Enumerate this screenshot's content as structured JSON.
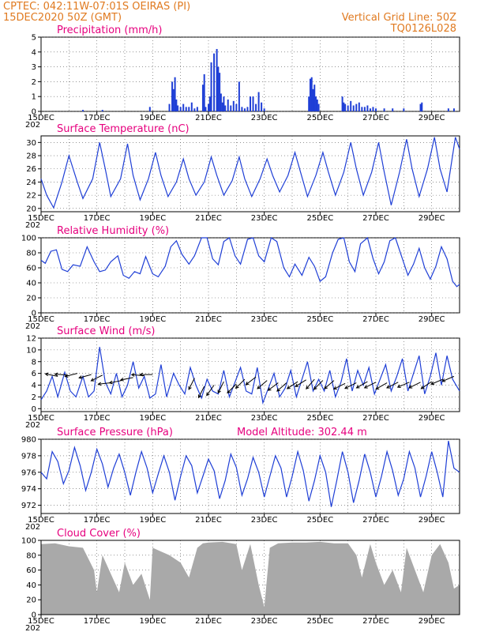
{
  "header": {
    "line1": "CPTEC:   042:11W-07:01S   OEIRAS (PI)",
    "line2": "15DEC2020 50Z (GMT)",
    "grid_note": "Vertical Grid Line: 50Z",
    "model_code": "TQ0126L028"
  },
  "x_axis": {
    "start_day": 15,
    "end_day": 30,
    "tick_labels": [
      "15DEC",
      "17DEC",
      "19DEC",
      "21DEC",
      "23DEC",
      "25DEC",
      "27DEC",
      "29DEC"
    ],
    "tick_days": [
      15,
      17,
      19,
      21,
      23,
      25,
      27,
      29
    ],
    "under_label": "202"
  },
  "chart_data": [
    {
      "id": "precip",
      "type": "bar",
      "title": "Precipitation (mm/h)",
      "ylim": [
        0,
        5
      ],
      "yticks": [
        0,
        1,
        2,
        3,
        4,
        5
      ],
      "color": "#1f3fd6",
      "x": [
        19.6,
        19.7,
        19.75,
        19.8,
        19.85,
        19.9,
        20.0,
        20.1,
        20.2,
        20.3,
        20.4,
        20.5,
        20.6,
        20.8,
        20.85,
        20.9,
        21.0,
        21.05,
        21.1,
        21.2,
        21.3,
        21.35,
        21.4,
        21.45,
        21.5,
        21.55,
        21.6,
        21.7,
        21.8,
        21.9,
        22.0,
        22.1,
        22.2,
        22.3,
        22.4,
        22.5,
        22.6,
        22.7,
        22.8,
        22.9,
        23.0,
        24.6,
        24.65,
        24.7,
        24.75,
        24.8,
        24.85,
        24.9,
        24.95,
        25.8,
        25.85,
        25.9,
        26.0,
        26.1,
        26.2,
        26.3,
        26.4,
        26.5,
        26.6,
        26.7,
        26.8,
        26.9,
        27.0,
        27.3,
        27.6,
        28.0,
        28.6,
        28.65,
        29.6,
        29.8,
        16.5,
        17.2,
        18.9
      ],
      "values": [
        0.5,
        2.0,
        1.5,
        2.3,
        0.8,
        0.4,
        0.3,
        0.5,
        0.3,
        0.3,
        0.6,
        0.2,
        0.3,
        1.8,
        2.5,
        0.3,
        0.5,
        1.0,
        3.3,
        3.9,
        4.2,
        3.0,
        2.6,
        1.2,
        0.6,
        1.0,
        0.4,
        0.8,
        0.4,
        0.7,
        0.5,
        2.0,
        0.3,
        0.2,
        0.3,
        1.0,
        1.0,
        0.5,
        1.3,
        0.6,
        0.2,
        1.0,
        2.2,
        2.3,
        1.5,
        1.8,
        1.0,
        0.8,
        0.5,
        1.0,
        0.6,
        0.5,
        0.4,
        0.7,
        0.4,
        0.5,
        0.6,
        0.3,
        0.3,
        0.4,
        0.2,
        0.3,
        0.2,
        0.2,
        0.2,
        0.2,
        0.5,
        0.6,
        0.2,
        0.2,
        0.1,
        0.1,
        0.3
      ]
    },
    {
      "id": "temp",
      "type": "line",
      "title": "Surface Temperature (nC)",
      "ylim": [
        19.5,
        31
      ],
      "yticks": [
        20,
        22,
        24,
        26,
        28,
        30
      ],
      "color": "#1f3fd6",
      "x": [
        15.0,
        15.2,
        15.45,
        15.75,
        16.0,
        16.3,
        16.5,
        16.85,
        17.1,
        17.3,
        17.5,
        17.85,
        18.1,
        18.3,
        18.55,
        18.85,
        19.1,
        19.3,
        19.55,
        19.85,
        20.1,
        20.3,
        20.55,
        20.85,
        21.1,
        21.3,
        21.55,
        21.85,
        22.1,
        22.3,
        22.55,
        22.85,
        23.1,
        23.3,
        23.55,
        23.85,
        24.1,
        24.3,
        24.55,
        24.85,
        25.1,
        25.3,
        25.55,
        25.85,
        26.1,
        26.3,
        26.55,
        26.85,
        27.1,
        27.3,
        27.55,
        27.85,
        28.1,
        28.3,
        28.55,
        28.85,
        29.1,
        29.3,
        29.55,
        29.85,
        30.0
      ],
      "values": [
        24.5,
        22.0,
        20.1,
        24.0,
        28.0,
        24.0,
        21.5,
        24.5,
        30.0,
        26.0,
        21.8,
        24.5,
        29.8,
        25.0,
        21.3,
        24.5,
        28.5,
        25.0,
        21.8,
        24.0,
        27.5,
        24.5,
        22.0,
        24.0,
        27.8,
        25.0,
        22.0,
        24.2,
        27.8,
        24.5,
        21.8,
        24.5,
        27.5,
        25.0,
        22.5,
        25.0,
        28.5,
        25.5,
        21.8,
        25.0,
        28.5,
        25.5,
        22.0,
        25.5,
        30.0,
        26.0,
        22.0,
        25.5,
        30.0,
        25.5,
        20.5,
        25.5,
        30.5,
        26.0,
        21.8,
        26.0,
        30.8,
        26.0,
        22.5,
        30.8,
        29.0
      ]
    },
    {
      "id": "rh",
      "type": "line",
      "title": "Relative Humidity (%)",
      "ylim": [
        0,
        100
      ],
      "yticks": [
        0,
        20,
        40,
        60,
        80,
        100
      ],
      "color": "#1f3fd6",
      "x": [
        15.0,
        15.15,
        15.35,
        15.55,
        15.75,
        15.95,
        16.15,
        16.4,
        16.65,
        16.9,
        17.1,
        17.3,
        17.5,
        17.75,
        17.95,
        18.15,
        18.35,
        18.55,
        18.75,
        19.0,
        19.2,
        19.45,
        19.65,
        19.85,
        20.05,
        20.3,
        20.5,
        20.75,
        20.95,
        21.15,
        21.35,
        21.55,
        21.75,
        21.95,
        22.15,
        22.4,
        22.6,
        22.8,
        23.0,
        23.25,
        23.45,
        23.7,
        23.9,
        24.1,
        24.35,
        24.6,
        24.8,
        25.0,
        25.2,
        25.45,
        25.65,
        25.85,
        26.05,
        26.25,
        26.45,
        26.7,
        26.9,
        27.1,
        27.3,
        27.5,
        27.7,
        27.95,
        28.15,
        28.35,
        28.55,
        28.75,
        28.95,
        29.15,
        29.35,
        29.55,
        29.75,
        29.9,
        30.0
      ],
      "values": [
        70,
        66,
        82,
        84,
        58,
        55,
        64,
        62,
        88,
        68,
        55,
        57,
        68,
        76,
        50,
        46,
        55,
        52,
        75,
        52,
        48,
        62,
        88,
        96,
        78,
        65,
        76,
        100,
        100,
        72,
        64,
        95,
        100,
        76,
        65,
        98,
        100,
        76,
        68,
        100,
        95,
        60,
        48,
        65,
        50,
        74,
        62,
        42,
        48,
        80,
        98,
        100,
        68,
        55,
        92,
        100,
        72,
        52,
        68,
        96,
        100,
        72,
        50,
        65,
        86,
        60,
        45,
        62,
        88,
        72,
        42,
        35,
        38
      ]
    },
    {
      "id": "wind",
      "type": "line",
      "title": "Surface Wind (m/s)",
      "ylim": [
        -0.5,
        12
      ],
      "yticks": [
        0,
        2,
        4,
        6,
        8,
        10,
        12
      ],
      "color": "#1f3fd6",
      "x": [
        15.0,
        15.2,
        15.4,
        15.6,
        15.85,
        16.05,
        16.25,
        16.5,
        16.7,
        16.9,
        17.1,
        17.3,
        17.5,
        17.7,
        17.9,
        18.1,
        18.3,
        18.5,
        18.7,
        18.9,
        19.1,
        19.3,
        19.5,
        19.75,
        19.95,
        20.15,
        20.35,
        20.55,
        20.75,
        20.95,
        21.15,
        21.35,
        21.55,
        21.75,
        21.95,
        22.15,
        22.35,
        22.55,
        22.75,
        22.95,
        23.15,
        23.35,
        23.55,
        23.75,
        23.95,
        24.15,
        24.35,
        24.55,
        24.75,
        24.95,
        25.15,
        25.35,
        25.55,
        25.75,
        25.95,
        26.15,
        26.35,
        26.55,
        26.75,
        26.95,
        27.15,
        27.35,
        27.55,
        27.75,
        27.95,
        28.15,
        28.35,
        28.55,
        28.75,
        28.95,
        29.15,
        29.35,
        29.55,
        29.75,
        30.0
      ],
      "values": [
        1.5,
        3.0,
        5.5,
        2.0,
        6.2,
        3.0,
        2.0,
        5.5,
        2.0,
        3.0,
        10.5,
        4.5,
        2.5,
        6.0,
        2.0,
        4.0,
        8.0,
        3.5,
        5.5,
        1.8,
        2.5,
        7.5,
        2.0,
        6.0,
        4.0,
        2.5,
        7.0,
        4.0,
        1.8,
        5.0,
        3.0,
        2.5,
        6.5,
        2.0,
        4.5,
        7.0,
        3.0,
        2.5,
        7.0,
        1.0,
        3.5,
        6.0,
        2.0,
        3.5,
        6.5,
        2.0,
        5.0,
        8.0,
        3.0,
        5.0,
        3.0,
        6.5,
        2.0,
        4.5,
        8.5,
        3.0,
        6.5,
        4.0,
        7.0,
        2.5,
        5.0,
        7.5,
        3.0,
        5.5,
        8.5,
        3.0,
        6.0,
        9.0,
        2.5,
        5.5,
        9.5,
        4.0,
        9.0,
        5.0,
        3.0
      ],
      "arrows_x": [
        15.6,
        15.95,
        16.3,
        16.8,
        17.2,
        17.5,
        17.9,
        18.3,
        18.7,
        19.0,
        20.5,
        20.85,
        21.2,
        21.55,
        22.0,
        22.3,
        22.7,
        23.1,
        23.5,
        23.8,
        24.2,
        24.5,
        24.8,
        25.1,
        25.5,
        25.9,
        26.3,
        26.7,
        27.0,
        27.4,
        27.8,
        28.2,
        28.6,
        29.0,
        29.4,
        29.8
      ],
      "arrows_y": [
        5.5,
        5.7,
        6.0,
        5.8,
        5.7,
        4.4,
        4.8,
        5.3,
        5.6,
        5.8,
        5.2,
        3.8,
        4.0,
        4.6,
        4.2,
        5.0,
        5.4,
        4.8,
        4.4,
        4.4,
        4.6,
        4.9,
        5.0,
        4.8,
        4.8,
        4.3,
        4.4,
        4.6,
        4.5,
        4.4,
        4.5,
        4.5,
        4.5,
        4.6,
        5.0,
        5.5
      ],
      "arrows_u": [
        -1,
        -1.2,
        -1.2,
        -1.1,
        -1,
        -0.9,
        -1,
        -1,
        -1.2,
        -1.1,
        -0.4,
        -0.3,
        -0.5,
        -0.4,
        -0.6,
        -0.5,
        -0.9,
        -0.7,
        -0.8,
        -0.8,
        -0.9,
        -0.8,
        -0.6,
        -0.6,
        -0.7,
        -0.6,
        -0.8,
        -0.7,
        -0.6,
        -0.7,
        -0.8,
        -0.7,
        -0.6,
        -0.6,
        -0.7,
        -0.7
      ],
      "arrows_v": [
        0.2,
        0.1,
        -0.3,
        -0.3,
        -0.5,
        -0.1,
        -0.2,
        -0.2,
        0.1,
        0.0,
        -0.8,
        -0.6,
        -0.7,
        -0.8,
        -0.6,
        -0.5,
        -0.7,
        -0.6,
        -0.6,
        -0.7,
        -0.6,
        -0.5,
        -0.7,
        -0.6,
        -0.6,
        -0.3,
        -0.4,
        -0.4,
        -0.3,
        -0.4,
        -0.4,
        -0.3,
        -0.3,
        -0.4,
        -0.3,
        -0.3
      ]
    },
    {
      "id": "pres",
      "type": "line",
      "title": "Surface Pressure (hPa)",
      "ylim": [
        971,
        980
      ],
      "yticks": [
        972,
        974,
        976,
        978,
        980
      ],
      "color": "#1f3fd6",
      "x": [
        15.0,
        15.2,
        15.4,
        15.6,
        15.8,
        16.0,
        16.2,
        16.4,
        16.6,
        16.8,
        17.0,
        17.2,
        17.4,
        17.6,
        17.8,
        18.0,
        18.2,
        18.4,
        18.6,
        18.8,
        19.0,
        19.2,
        19.4,
        19.6,
        19.8,
        20.0,
        20.2,
        20.4,
        20.6,
        20.8,
        21.0,
        21.2,
        21.4,
        21.6,
        21.8,
        22.0,
        22.2,
        22.4,
        22.6,
        22.8,
        23.0,
        23.2,
        23.4,
        23.6,
        23.8,
        24.0,
        24.2,
        24.4,
        24.6,
        24.8,
        25.0,
        25.2,
        25.4,
        25.6,
        25.8,
        26.0,
        26.2,
        26.4,
        26.6,
        26.8,
        27.0,
        27.2,
        27.4,
        27.6,
        27.8,
        28.0,
        28.2,
        28.4,
        28.6,
        28.8,
        29.0,
        29.2,
        29.4,
        29.6,
        29.8,
        30.0
      ],
      "values": [
        976.0,
        975.2,
        978.5,
        977.3,
        974.6,
        976.2,
        979.0,
        976.8,
        973.8,
        976.0,
        978.8,
        977.0,
        974.2,
        976.5,
        978.2,
        976.0,
        973.2,
        976.0,
        978.5,
        976.5,
        973.5,
        975.8,
        978.0,
        976.0,
        972.6,
        975.5,
        978.0,
        976.8,
        973.5,
        975.5,
        977.6,
        976.2,
        972.8,
        975.0,
        978.2,
        976.6,
        973.2,
        975.2,
        977.8,
        976.0,
        973.0,
        975.5,
        978.0,
        976.5,
        973.0,
        975.5,
        978.5,
        976.2,
        972.5,
        975.0,
        978.0,
        976.0,
        971.8,
        975.0,
        978.5,
        976.0,
        972.3,
        975.0,
        978.2,
        976.0,
        973.0,
        975.5,
        978.5,
        976.2,
        973.2,
        975.2,
        978.5,
        976.5,
        973.0,
        975.5,
        978.5,
        976.0,
        973.0,
        979.8,
        976.5,
        976.0
      ],
      "annotation": "Model Altitude: 302.44 m"
    },
    {
      "id": "cloud",
      "type": "area",
      "title": "Cloud Cover (%)",
      "ylim": [
        0,
        100
      ],
      "yticks": [
        0,
        20,
        40,
        60,
        80,
        100
      ],
      "color": "#a9a9a9",
      "x": [
        15.0,
        15.5,
        16.0,
        16.5,
        16.9,
        17.0,
        17.2,
        17.5,
        17.8,
        18.0,
        18.3,
        18.6,
        18.9,
        19.0,
        19.3,
        19.6,
        20.0,
        20.3,
        20.6,
        20.8,
        21.0,
        21.5,
        22.0,
        22.2,
        22.5,
        22.8,
        23.0,
        23.2,
        23.5,
        24.0,
        24.5,
        25.0,
        25.5,
        26.0,
        26.3,
        26.5,
        26.8,
        27.0,
        27.3,
        27.6,
        27.9,
        28.1,
        28.4,
        28.7,
        29.0,
        29.3,
        29.6,
        29.8,
        30.0
      ],
      "values": [
        95,
        96,
        92,
        90,
        60,
        30,
        80,
        55,
        30,
        70,
        40,
        55,
        20,
        90,
        85,
        80,
        70,
        50,
        90,
        96,
        97,
        98,
        95,
        60,
        95,
        40,
        10,
        90,
        96,
        97,
        97,
        98,
        96,
        96,
        80,
        50,
        95,
        70,
        40,
        60,
        30,
        90,
        60,
        30,
        80,
        95,
        70,
        35,
        40
      ]
    }
  ]
}
